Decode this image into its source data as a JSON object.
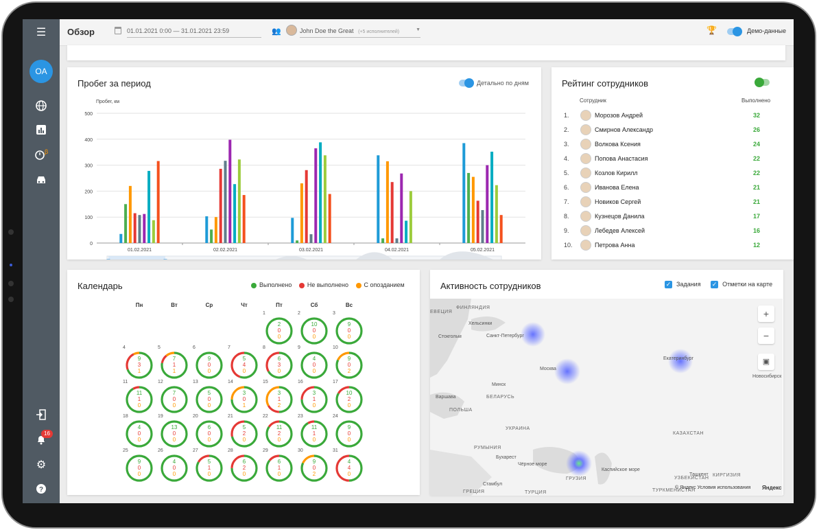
{
  "colors": {
    "accent": "#2b95e3",
    "green": "#3aa93a",
    "red": "#e53935",
    "orange": "#ff9800",
    "sidebar": "#505a63"
  },
  "topbar": {
    "title": "Обзор",
    "date_range": "01.01.2021 0:00 — 31.01.2021 23:59",
    "user": "John Doe the Great",
    "user_extra": "(+5 исполнителей)",
    "demo_label": "Демо-данные"
  },
  "sidebar": {
    "avatar": "OA",
    "badge": "16",
    "icons": [
      "menu-icon",
      "globe-icon",
      "chart-icon",
      "clock-beta-icon",
      "car-icon",
      "logout-icon",
      "bell-icon",
      "gear-icon",
      "help-icon"
    ]
  },
  "mileage": {
    "title": "Пробег за период",
    "toggle_label": "Детально по дням",
    "chart_data": {
      "type": "bar",
      "ylabel": "Пробег, км",
      "ylim": [
        0,
        500
      ],
      "yticks": [
        0,
        100,
        200,
        300,
        400,
        500
      ],
      "categories": [
        "01.02.2021",
        "02.02.2021",
        "03.02.2021",
        "04.02.2021",
        "05.02.2021"
      ],
      "colors": [
        "#1e9bd7",
        "#4caf50",
        "#ff9800",
        "#e53935",
        "#607d8b",
        "#9c27b0",
        "#00acc1",
        "#9ccc3c",
        "#f4511e"
      ],
      "groups": [
        [
          35,
          150,
          220,
          115,
          108,
          112,
          278,
          88,
          316
        ],
        [
          103,
          52,
          100,
          286,
          317,
          398,
          227,
          322,
          185
        ],
        [
          97,
          10,
          230,
          281,
          34,
          365,
          388,
          338,
          189
        ],
        [
          338,
          18,
          315,
          235,
          18,
          268,
          86,
          200,
          0
        ],
        [
          385,
          270,
          255,
          163,
          127,
          300,
          352,
          223,
          108
        ]
      ]
    }
  },
  "rating": {
    "title": "Рейтинг сотрудников",
    "col_employee": "Сотрудник",
    "col_done": "Выполнено",
    "rows": [
      {
        "n": "1.",
        "name": "Морозов Андрей",
        "v": "32"
      },
      {
        "n": "2.",
        "name": "Смирнов Александр",
        "v": "26"
      },
      {
        "n": "3.",
        "name": "Волкова Ксения",
        "v": "24"
      },
      {
        "n": "4.",
        "name": "Попова Анастасия",
        "v": "22"
      },
      {
        "n": "5.",
        "name": "Козлов Кирилл",
        "v": "22"
      },
      {
        "n": "6.",
        "name": "Иванова Елена",
        "v": "21"
      },
      {
        "n": "7.",
        "name": "Новиков Сергей",
        "v": "21"
      },
      {
        "n": "8.",
        "name": "Кузнецов Данила",
        "v": "17"
      },
      {
        "n": "9.",
        "name": "Лебедев Алексей",
        "v": "16"
      },
      {
        "n": "10.",
        "name": "Петрова Анна",
        "v": "12"
      }
    ]
  },
  "calendar": {
    "title": "Календарь",
    "legend": [
      "Выполнено",
      "Не выполнено",
      "С опозданием"
    ],
    "weekdays": [
      "Пн",
      "Вт",
      "Ср",
      "Чт",
      "Пт",
      "Сб",
      "Вс"
    ],
    "days": [
      {
        "d": "1",
        "a": "2",
        "b": "0",
        "c": "0"
      },
      {
        "d": "2",
        "a": "10",
        "b": "0",
        "c": "0"
      },
      {
        "d": "3",
        "a": "9",
        "b": "0",
        "c": "0"
      },
      {
        "d": "4",
        "a": "9",
        "b": "3",
        "c": "1"
      },
      {
        "d": "5",
        "a": "7",
        "b": "1",
        "c": "1"
      },
      {
        "d": "6",
        "a": "9",
        "b": "0",
        "c": "0"
      },
      {
        "d": "7",
        "a": "5",
        "b": "4",
        "c": "0"
      },
      {
        "d": "8",
        "a": "6",
        "b": "3",
        "c": "0"
      },
      {
        "d": "9",
        "a": "4",
        "b": "0",
        "c": "0"
      },
      {
        "d": "10",
        "a": "9",
        "b": "0",
        "c": "2"
      },
      {
        "d": "11",
        "a": "11",
        "b": "1",
        "c": "0"
      },
      {
        "d": "12",
        "a": "7",
        "b": "0",
        "c": "0"
      },
      {
        "d": "13",
        "a": "5",
        "b": "0",
        "c": "0"
      },
      {
        "d": "14",
        "a": "3",
        "b": "0",
        "c": "1"
      },
      {
        "d": "15",
        "a": "3",
        "b": "1",
        "c": "2"
      },
      {
        "d": "16",
        "a": "3",
        "b": "1",
        "c": "0"
      },
      {
        "d": "17",
        "a": "10",
        "b": "2",
        "c": "0"
      },
      {
        "d": "18",
        "a": "4",
        "b": "0",
        "c": "0"
      },
      {
        "d": "19",
        "a": "13",
        "b": "0",
        "c": "0"
      },
      {
        "d": "20",
        "a": "6",
        "b": "0",
        "c": "0"
      },
      {
        "d": "21",
        "a": "5",
        "b": "2",
        "c": "0"
      },
      {
        "d": "22",
        "a": "11",
        "b": "2",
        "c": "0"
      },
      {
        "d": "23",
        "a": "11",
        "b": "1",
        "c": "0"
      },
      {
        "d": "24",
        "a": "9",
        "b": "0",
        "c": "0"
      },
      {
        "d": "25",
        "a": "9",
        "b": "0",
        "c": "0"
      },
      {
        "d": "26",
        "a": "4",
        "b": "0",
        "c": "0"
      },
      {
        "d": "27",
        "a": "5",
        "b": "1",
        "c": "0"
      },
      {
        "d": "28",
        "a": "6",
        "b": "2",
        "c": "0"
      },
      {
        "d": "29",
        "a": "6",
        "b": "1",
        "c": "0"
      },
      {
        "d": "30",
        "a": "9",
        "b": "0",
        "c": "2"
      },
      {
        "d": "31",
        "a": "4",
        "b": "4",
        "c": "0"
      }
    ]
  },
  "activity": {
    "title": "Активность сотрудников",
    "chk_tasks": "Задания",
    "chk_marks": "Отметки на карте",
    "map_labels": [
      "ФИНЛЯНДИЯ",
      "Хельсинки",
      "Санкт-Петербург",
      "ЕВЕЦИЯ",
      "Стокгольм",
      "Москва",
      "Екатеринбург",
      "Новосибирск",
      "Минск",
      "БЕЛАРУСЬ",
      "Варшава",
      "ПОЛЬША",
      "УКРАИНА",
      "РУМЫНИЯ",
      "Бухарест",
      "Чёрное море",
      "Каспийское море",
      "КАЗАХСТАН",
      "УЗБЕКИСТАН",
      "Ташкент",
      "КИРГИЗИЯ",
      "ТУРКМЕНИСТАН",
      "ТУРЦИЯ",
      "Стамбул",
      "ГРЕЦИЯ",
      "ГРУЗИЯ"
    ],
    "attribution": "© Яндекс Условия использования",
    "brand": "Яндекс"
  }
}
